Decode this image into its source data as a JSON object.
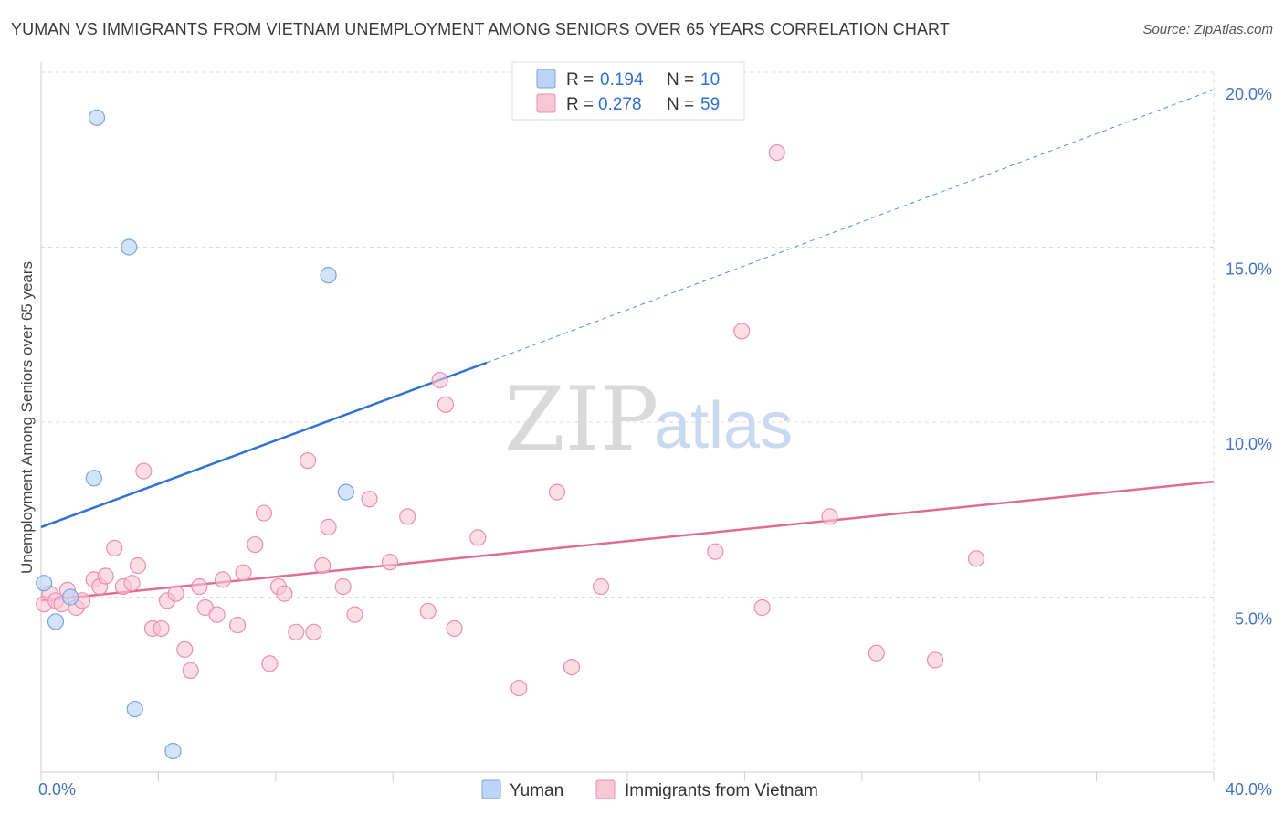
{
  "title": "YUMAN VS IMMIGRANTS FROM VIETNAM UNEMPLOYMENT AMONG SENIORS OVER 65 YEARS CORRELATION CHART",
  "source": "Source: ZipAtlas.com",
  "watermark": {
    "part1": "ZIP",
    "part2": "atlas"
  },
  "colors": {
    "yuman_fill": "#bcd4f5",
    "yuman_stroke": "#7aa4e0",
    "yuman_line": "#2e72d2",
    "vietnam_fill": "#f8c7d6",
    "vietnam_stroke": "#ec8fae",
    "vietnam_line": "#e06b97",
    "grid": "#dcdcdc",
    "tick_label": "#4472c4"
  },
  "legend": {
    "r_label": "R =",
    "n_label": "N =",
    "rows": [
      {
        "r": "0.194",
        "n": "10"
      },
      {
        "r": "0.278",
        "n": "59"
      }
    ]
  },
  "chart_data": {
    "type": "scatter",
    "title": "YUMAN VS IMMIGRANTS FROM VIETNAM UNEMPLOYMENT AMONG SENIORS OVER 65 YEARS CORRELATION CHART",
    "xlabel": "",
    "ylabel": "Unemployment Among Seniors over 65 years",
    "xlim": [
      0,
      40
    ],
    "ylim": [
      0,
      20
    ],
    "x_ticks": [
      "0.0%",
      "40.0%"
    ],
    "y_ticks": [
      {
        "value": 5,
        "label": "5.0%"
      },
      {
        "value": 10,
        "label": "10.0%"
      },
      {
        "value": 15,
        "label": "15.0%"
      },
      {
        "value": 20,
        "label": "20.0%"
      }
    ],
    "series": [
      {
        "name": "Yuman",
        "r": 0.194,
        "n": 10,
        "points": [
          [
            0.1,
            5.4
          ],
          [
            0.5,
            4.3
          ],
          [
            1.0,
            5.0
          ],
          [
            1.8,
            8.4
          ],
          [
            1.9,
            18.7
          ],
          [
            3.0,
            15.0
          ],
          [
            3.2,
            1.8
          ],
          [
            4.5,
            0.6
          ],
          [
            9.8,
            14.2
          ],
          [
            10.4,
            8.0
          ]
        ],
        "trend": {
          "x0": 0,
          "y0": 7.0,
          "x1": 15.2,
          "y1": 11.7,
          "x_dash_end": 40,
          "y_dash_end": 19.5
        }
      },
      {
        "name": "Immigrants from Vietnam",
        "r": 0.278,
        "n": 59,
        "points": [
          [
            0.1,
            4.8
          ],
          [
            0.3,
            5.1
          ],
          [
            0.5,
            4.9
          ],
          [
            0.7,
            4.8
          ],
          [
            0.9,
            5.2
          ],
          [
            1.2,
            4.7
          ],
          [
            1.4,
            4.9
          ],
          [
            1.8,
            5.5
          ],
          [
            2.0,
            5.3
          ],
          [
            2.2,
            5.6
          ],
          [
            2.5,
            6.4
          ],
          [
            2.8,
            5.3
          ],
          [
            3.1,
            5.4
          ],
          [
            3.3,
            5.9
          ],
          [
            3.5,
            8.6
          ],
          [
            3.8,
            4.1
          ],
          [
            4.1,
            4.1
          ],
          [
            4.3,
            4.9
          ],
          [
            4.6,
            5.1
          ],
          [
            4.9,
            3.5
          ],
          [
            5.1,
            2.9
          ],
          [
            5.4,
            5.3
          ],
          [
            5.6,
            4.7
          ],
          [
            6.0,
            4.5
          ],
          [
            6.2,
            5.5
          ],
          [
            6.7,
            4.2
          ],
          [
            6.9,
            5.7
          ],
          [
            7.3,
            6.5
          ],
          [
            7.6,
            7.4
          ],
          [
            7.8,
            3.1
          ],
          [
            8.1,
            5.3
          ],
          [
            8.3,
            5.1
          ],
          [
            8.7,
            4.0
          ],
          [
            9.1,
            8.9
          ],
          [
            9.3,
            4.0
          ],
          [
            9.6,
            5.9
          ],
          [
            9.8,
            7.0
          ],
          [
            10.3,
            5.3
          ],
          [
            10.7,
            4.5
          ],
          [
            11.2,
            7.8
          ],
          [
            11.9,
            6.0
          ],
          [
            12.5,
            7.3
          ],
          [
            13.2,
            4.6
          ],
          [
            13.6,
            11.2
          ],
          [
            13.8,
            10.5
          ],
          [
            14.1,
            4.1
          ],
          [
            14.9,
            6.7
          ],
          [
            16.3,
            2.4
          ],
          [
            17.6,
            8.0
          ],
          [
            18.1,
            3.0
          ],
          [
            19.1,
            5.3
          ],
          [
            23.0,
            6.3
          ],
          [
            23.9,
            12.6
          ],
          [
            24.6,
            4.7
          ],
          [
            25.1,
            17.7
          ],
          [
            26.9,
            7.3
          ],
          [
            28.5,
            3.4
          ],
          [
            30.5,
            3.2
          ],
          [
            31.9,
            6.1
          ]
        ],
        "trend": {
          "x0": 0,
          "y0": 4.9,
          "x1": 40,
          "y1": 8.3
        }
      }
    ],
    "legend_position": "top-center",
    "grid": true
  }
}
